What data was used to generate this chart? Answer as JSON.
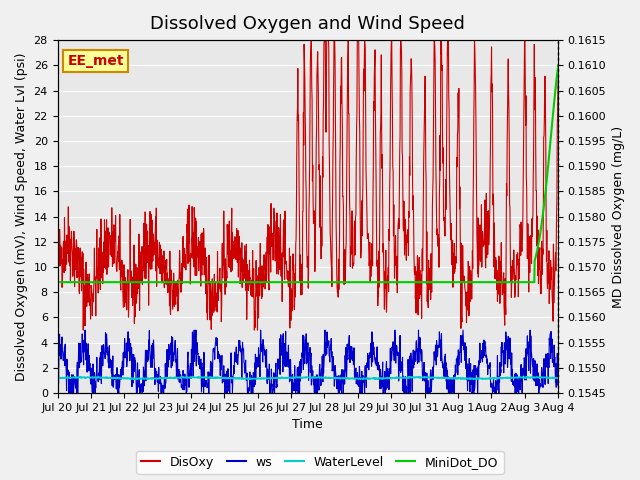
{
  "title": "Dissolved Oxygen and Wind Speed",
  "xlabel": "Time",
  "ylabel_left": "Dissolved Oxygen (mV), Wind Speed, Water Lvl (psi)",
  "ylabel_right": "MD Dissolved Oxygen (mg/L)",
  "annotation": "EE_met",
  "ylim_left": [
    0,
    28
  ],
  "ylim_right": [
    0.1545,
    0.1615
  ],
  "yticks_left": [
    0,
    2,
    4,
    6,
    8,
    10,
    12,
    14,
    16,
    18,
    20,
    22,
    24,
    26,
    28
  ],
  "yticks_right": [
    0.1545,
    0.155,
    0.1555,
    0.156,
    0.1565,
    0.157,
    0.1575,
    0.158,
    0.1585,
    0.159,
    0.1595,
    0.16,
    0.1605,
    0.161,
    0.1615
  ],
  "xtick_labels": [
    "Jul 20",
    "Jul 21",
    "Jul 22",
    "Jul 23",
    "Jul 24",
    "Jul 25",
    "Jul 26",
    "Jul 27",
    "Jul 28",
    "Jul 29",
    "Jul 30",
    "Jul 31",
    "Aug 1",
    "Aug 2",
    "Aug 3",
    "Aug 4"
  ],
  "colors": {
    "DisOxy": "#cc0000",
    "ws": "#0000cc",
    "WaterLevel": "#00cccc",
    "MiniDot_DO": "#00cc00"
  },
  "bg_color": "#e8e8e8",
  "annotation_box_color": "#ffff99",
  "annotation_text_color": "#cc0000",
  "annotation_box_edge_color": "#cc8800",
  "grid_color": "#ffffff",
  "title_fontsize": 13,
  "axis_fontsize": 9,
  "tick_fontsize": 8,
  "legend_fontsize": 9
}
